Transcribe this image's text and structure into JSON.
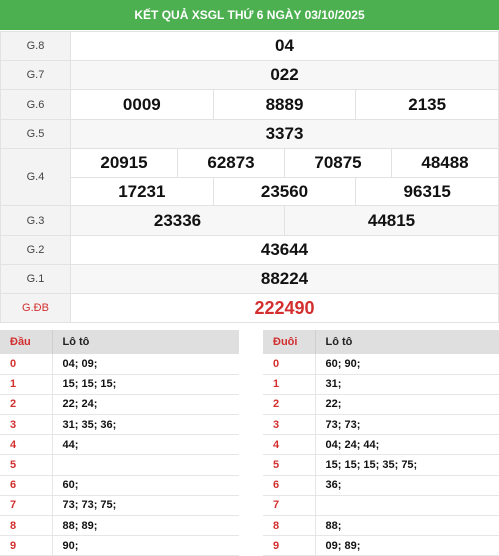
{
  "header": {
    "title": "KẾT QUẢ XSGL THỨ 6 NGÀY 03/10/2025"
  },
  "prizes": {
    "g8": {
      "label": "G.8",
      "values": [
        "04"
      ]
    },
    "g7": {
      "label": "G.7",
      "values": [
        "022"
      ]
    },
    "g6": {
      "label": "G.6",
      "values": [
        "0009",
        "8889",
        "2135"
      ]
    },
    "g5": {
      "label": "G.5",
      "values": [
        "3373"
      ]
    },
    "g4": {
      "label": "G.4",
      "values": [
        "20915",
        "62873",
        "70875",
        "48488",
        "17231",
        "23560",
        "96315"
      ]
    },
    "g3": {
      "label": "G.3",
      "values": [
        "23336",
        "44815"
      ]
    },
    "g2": {
      "label": "G.2",
      "values": [
        "43644"
      ]
    },
    "g1": {
      "label": "G.1",
      "values": [
        "88224"
      ]
    },
    "gdb": {
      "label": "G.ĐB",
      "values": [
        "222490"
      ]
    }
  },
  "dau_table": {
    "header_key": "Đầu",
    "header_vals": "Lô tô",
    "rows": [
      {
        "key": "0",
        "vals": "04; 09;"
      },
      {
        "key": "1",
        "vals": "15; 15; 15;"
      },
      {
        "key": "2",
        "vals": "22; 24;"
      },
      {
        "key": "3",
        "vals": "31; 35; 36;"
      },
      {
        "key": "4",
        "vals": "44;"
      },
      {
        "key": "5",
        "vals": ""
      },
      {
        "key": "6",
        "vals": "60;"
      },
      {
        "key": "7",
        "vals": "73; 73; 75;"
      },
      {
        "key": "8",
        "vals": "88; 89;"
      },
      {
        "key": "9",
        "vals": "90;"
      }
    ]
  },
  "duoi_table": {
    "header_key": "Đuôi",
    "header_vals": "Lô tô",
    "rows": [
      {
        "key": "0",
        "vals": "60; 90;"
      },
      {
        "key": "1",
        "vals": "31;"
      },
      {
        "key": "2",
        "vals": "22;"
      },
      {
        "key": "3",
        "vals": "73; 73;"
      },
      {
        "key": "4",
        "vals": "04; 24; 44;"
      },
      {
        "key": "5",
        "vals": "15; 15; 15; 35; 75;"
      },
      {
        "key": "6",
        "vals": "36;"
      },
      {
        "key": "7",
        "vals": ""
      },
      {
        "key": "8",
        "vals": "88;"
      },
      {
        "key": "9",
        "vals": "09; 89;"
      }
    ]
  },
  "colors": {
    "header_bg": "#4caf50",
    "special": "#d32f2f"
  }
}
